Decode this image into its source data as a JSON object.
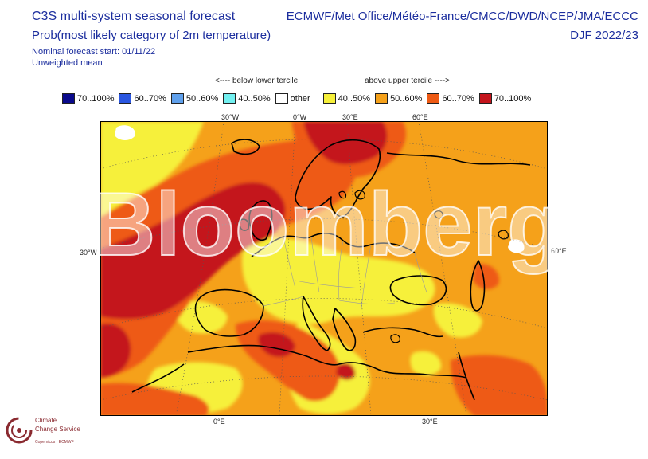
{
  "header": {
    "title_line1": "C3S multi-system seasonal forecast",
    "title_line2": "Prob(most likely category of 2m temperature)",
    "nominal_start": "Nominal forecast start: 01/11/22",
    "weighting": "Unweighted mean",
    "systems": "ECMWF/Met Office/Météo-France/CMCC/DWD/NCEP/JMA/ECCC",
    "season": "DJF 2022/23"
  },
  "legend": {
    "below_label": "<---- below lower tercile",
    "above_label": "above upper tercile ---->",
    "items": [
      {
        "label": "70..100%",
        "color": "#0a0a8c"
      },
      {
        "label": "60..70%",
        "color": "#2a56e0"
      },
      {
        "label": "50..60%",
        "color": "#5fa0ec"
      },
      {
        "label": "40..50%",
        "color": "#72f0f0"
      },
      {
        "label": "other",
        "color": "#ffffff"
      },
      {
        "label": "40..50%",
        "color": "#f6f03a"
      },
      {
        "label": "50..60%",
        "color": "#f5a11a"
      },
      {
        "label": "60..70%",
        "color": "#ee5a14"
      },
      {
        "label": "70..100%",
        "color": "#c4141c"
      }
    ]
  },
  "map": {
    "top_labels": [
      "30°W",
      "0°W",
      "30°E",
      "60°E"
    ],
    "bottom_labels": [
      "0°E",
      "30°E"
    ],
    "left_label": "30°W",
    "right_label": "60°E"
  },
  "watermark": "Bloomberg",
  "logo": {
    "line1": "Climate",
    "line2": "Change Service",
    "line3": "Copernicus · ECMWF"
  }
}
